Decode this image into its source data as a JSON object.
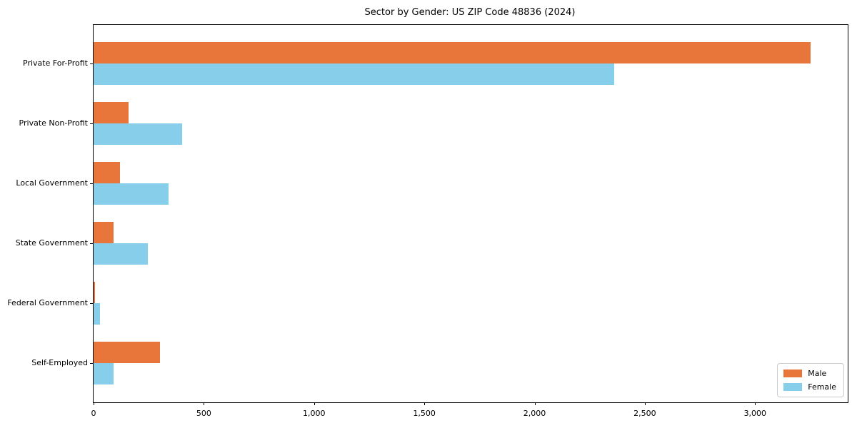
{
  "title": "Sector by Gender: US ZIP Code 48836 (2024)",
  "chart_data": {
    "type": "bar",
    "orientation": "horizontal",
    "title": "Sector by Gender: US ZIP Code 48836 (2024)",
    "categories": [
      "Private For-Profit",
      "Private Non-Profit",
      "Local Government",
      "State Government",
      "Federal Government",
      "Self-Employed"
    ],
    "series": [
      {
        "name": "Male",
        "color": "#e8763b",
        "values": [
          3250,
          160,
          120,
          90,
          5,
          300
        ]
      },
      {
        "name": "Female",
        "color": "#87ceeb",
        "values": [
          2360,
          400,
          340,
          245,
          30,
          90
        ]
      }
    ],
    "xlabel": "",
    "ylabel": "",
    "xlim": [
      0,
      3420
    ],
    "xticks": [
      0,
      500,
      1000,
      1500,
      2000,
      2500,
      3000
    ],
    "xtick_labels": [
      "0",
      "500",
      "1,000",
      "1,500",
      "2,000",
      "2,500",
      "3,000"
    ],
    "grid": false,
    "legend_position": "lower right"
  }
}
